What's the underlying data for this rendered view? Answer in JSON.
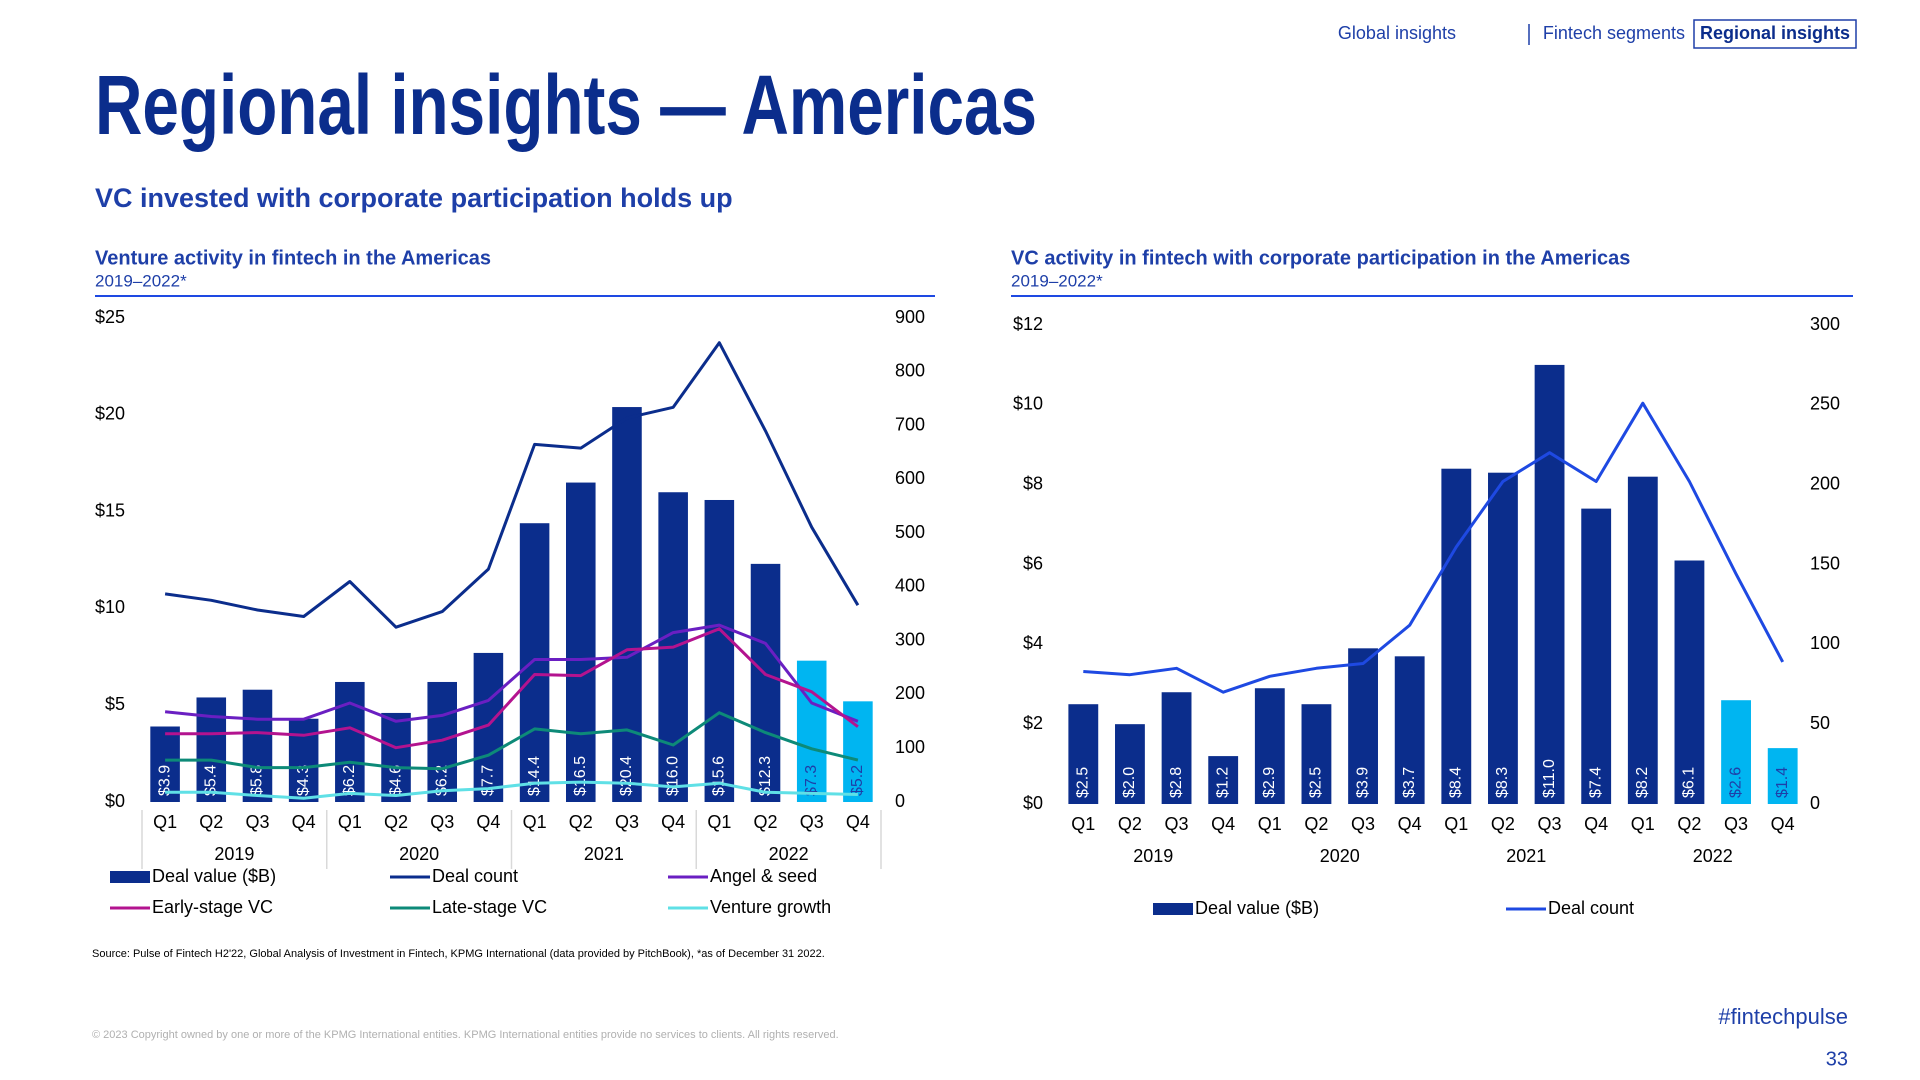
{
  "nav": [
    "Global insights",
    "Fintech segments",
    "Regional insights"
  ],
  "title": "Regional insights — Americas",
  "subtitle": "VC invested with corporate participation holds up",
  "chart_data": [
    {
      "type": "combo",
      "title": "Venture activity in fintech in the Americas",
      "subtitle": "2019–2022*",
      "categories": [
        "Q1",
        "Q2",
        "Q3",
        "Q4",
        "Q1",
        "Q2",
        "Q3",
        "Q4",
        "Q1",
        "Q2",
        "Q3",
        "Q4",
        "Q1",
        "Q2",
        "Q3",
        "Q4"
      ],
      "groups": [
        "2019",
        "2020",
        "2021",
        "2022"
      ],
      "ylim": [
        0,
        25
      ],
      "yticks": [
        {
          "value": 0,
          "label": "$0"
        },
        {
          "value": 5,
          "label": "$5"
        },
        {
          "value": 10,
          "label": "$10"
        },
        {
          "value": 15,
          "label": "$15"
        },
        {
          "value": 20,
          "label": "$20"
        },
        {
          "value": 25,
          "label": "$25"
        }
      ],
      "y2lim": [
        0,
        900
      ],
      "y2ticks": [
        0,
        100,
        200,
        300,
        400,
        500,
        600,
        700,
        800,
        900
      ],
      "series": [
        {
          "name": "Deal value ($B)",
          "type": "bar",
          "color": "#0b2d8c",
          "colors": [
            "#0b2d8c",
            "#0b2d8c",
            "#0b2d8c",
            "#0b2d8c",
            "#0b2d8c",
            "#0b2d8c",
            "#0b2d8c",
            "#0b2d8c",
            "#0b2d8c",
            "#0b2d8c",
            "#0b2d8c",
            "#0b2d8c",
            "#0b2d8c",
            "#0b2d8c",
            "#00b5f1",
            "#00b5f1"
          ],
          "values": [
            3.9,
            5.4,
            5.8,
            4.3,
            6.2,
            4.6,
            6.2,
            7.7,
            14.4,
            16.5,
            20.4,
            16.0,
            15.6,
            12.3,
            7.3,
            5.2
          ],
          "value_labels": [
            "$3.9",
            "$5.4",
            "$5.8",
            "$4.3",
            "$6.2",
            "$4.6",
            "$6.2",
            "$7.7",
            "$14.4",
            "$16.5",
            "$20.4",
            "$16.0",
            "$15.6",
            "$12.3",
            "$7.3",
            "$5.2"
          ]
        },
        {
          "name": "Deal count",
          "type": "line",
          "axis": "y2",
          "color": "#0b2d8c",
          "values": [
            387,
            375,
            357,
            345,
            410,
            325,
            354,
            433,
            665,
            658,
            714,
            734,
            854,
            690,
            511,
            366
          ]
        },
        {
          "name": "Angel & seed",
          "type": "line",
          "axis": "y2",
          "color": "#6a1fc2",
          "values": [
            168,
            159,
            154,
            154,
            184,
            150,
            161,
            189,
            265,
            265,
            269,
            315,
            329,
            295,
            184,
            150
          ]
        },
        {
          "name": "Early-stage VC",
          "type": "line",
          "axis": "y2",
          "color": "#b3138f",
          "values": [
            127,
            127,
            129,
            124,
            138,
            101,
            115,
            143,
            237,
            235,
            283,
            288,
            322,
            237,
            205,
            140
          ]
        },
        {
          "name": "Late-stage VC",
          "type": "line",
          "axis": "y2",
          "color": "#0d8a78",
          "values": [
            78,
            78,
            64,
            64,
            74,
            64,
            62,
            87,
            136,
            127,
            134,
            106,
            166,
            129,
            99,
            78
          ]
        },
        {
          "name": "Venture growth",
          "type": "line",
          "axis": "y2",
          "color": "#5fe0e6",
          "values": [
            18,
            18,
            12,
            7,
            16,
            12,
            21,
            25,
            35,
            37,
            35,
            28,
            35,
            18,
            16,
            14
          ]
        }
      ],
      "group_dividers": true
    },
    {
      "type": "combo",
      "title": "VC activity in fintech with corporate participation in the Americas",
      "subtitle": "2019–2022*",
      "categories": [
        "Q1",
        "Q2",
        "Q3",
        "Q4",
        "Q1",
        "Q2",
        "Q3",
        "Q4",
        "Q1",
        "Q2",
        "Q3",
        "Q4",
        "Q1",
        "Q2",
        "Q3",
        "Q4"
      ],
      "groups": [
        "2019",
        "2020",
        "2021",
        "2022"
      ],
      "ylim": [
        0,
        12
      ],
      "yticks": [
        {
          "value": 0,
          "label": "$0"
        },
        {
          "value": 2,
          "label": "$2"
        },
        {
          "value": 4,
          "label": "$4"
        },
        {
          "value": 6,
          "label": "$6"
        },
        {
          "value": 8,
          "label": "$8"
        },
        {
          "value": 10,
          "label": "$10"
        },
        {
          "value": 12,
          "label": "$12"
        }
      ],
      "y2lim": [
        0,
        300
      ],
      "y2ticks": [
        0,
        50,
        100,
        150,
        200,
        250,
        300
      ],
      "series": [
        {
          "name": "Deal value ($B)",
          "type": "bar",
          "color": "#0b2d8c",
          "colors": [
            "#0b2d8c",
            "#0b2d8c",
            "#0b2d8c",
            "#0b2d8c",
            "#0b2d8c",
            "#0b2d8c",
            "#0b2d8c",
            "#0b2d8c",
            "#0b2d8c",
            "#0b2d8c",
            "#0b2d8c",
            "#0b2d8c",
            "#0b2d8c",
            "#0b2d8c",
            "#00b5f1",
            "#00b5f1"
          ],
          "values": [
            2.5,
            2.0,
            2.8,
            1.2,
            2.9,
            2.5,
            3.9,
            3.7,
            8.4,
            8.3,
            11.0,
            7.4,
            8.2,
            6.1,
            2.6,
            1.4
          ],
          "value_labels": [
            "$2.5",
            "$2.0",
            "$2.8",
            "$1.2",
            "$2.9",
            "$2.5",
            "$3.9",
            "$3.7",
            "$8.4",
            "$8.3",
            "$11.0",
            "$7.4",
            "$8.2",
            "$6.1",
            "$2.6",
            "$1.4"
          ]
        },
        {
          "name": "Deal count",
          "type": "line",
          "axis": "y2",
          "color": "#1e49e2",
          "values": [
            83,
            81,
            85,
            70,
            80,
            85,
            88,
            112,
            161,
            202,
            220,
            202,
            251,
            202,
            144,
            89
          ]
        }
      ],
      "group_dividers": false
    }
  ],
  "source": "Source: Pulse of Fintech H2'22, Global Analysis of Investment in Fintech, KPMG International (data provided by PitchBook), *as of December 31 2022.",
  "copyright": "© 2023 Copyright owned by one or more of the KPMG International entities. KPMG International entities provide no services to clients. All rights reserved.",
  "hashtag": "#fintechpulse",
  "page_number": "33"
}
